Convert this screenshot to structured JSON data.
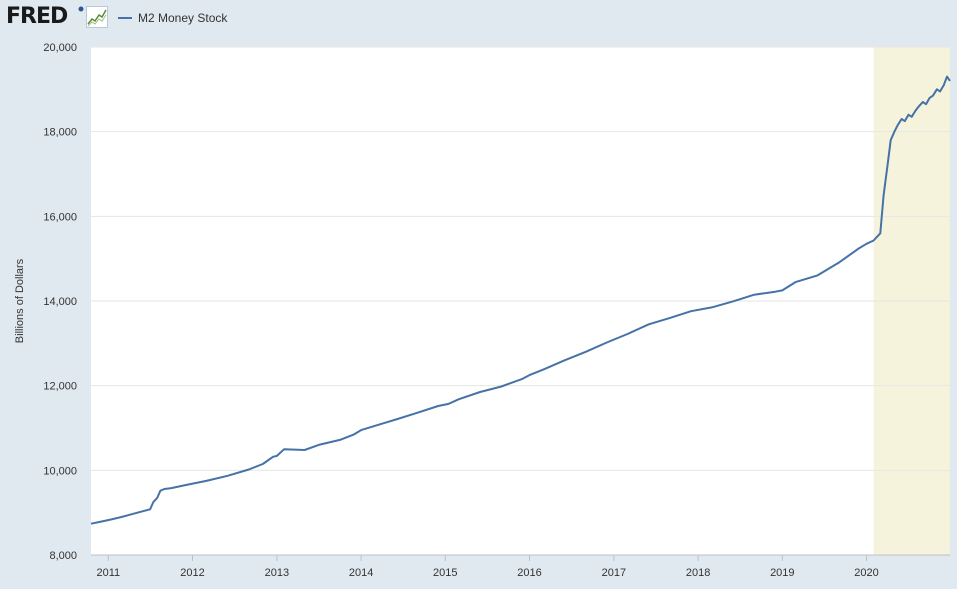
{
  "header": {
    "logo_text": "FRED",
    "graph_icon": "fred-graph-icon"
  },
  "colors": {
    "series": "#4572a7",
    "recession": "#f5f3dc",
    "plot_bg": "#ffffff",
    "page_bg": "#e1e9f0",
    "grid": "#e6e6e6"
  },
  "chart_data": {
    "type": "line",
    "title": "",
    "xlabel": "",
    "ylabel": "Billions of Dollars",
    "ylim": [
      8000,
      20000
    ],
    "xlim": [
      "2010-10-18",
      "2020-12-28"
    ],
    "grid": true,
    "legend_position": "top-left",
    "y_ticks": [
      "8,000",
      "10,000",
      "12,000",
      "14,000",
      "16,000",
      "18,000",
      "20,000"
    ],
    "x_ticks": [
      "2011",
      "2012",
      "2013",
      "2014",
      "2015",
      "2016",
      "2017",
      "2018",
      "2019",
      "2020"
    ],
    "shaded_regions": [
      {
        "start": "2020-02-01",
        "end": "2020-12-28"
      }
    ],
    "series": [
      {
        "name": "M2 Money Stock",
        "x": [
          "2010-10-18",
          "2010-12-01",
          "2011-01-15",
          "2011-03-01",
          "2011-05-15",
          "2011-07-01",
          "2011-07-15",
          "2011-08-01",
          "2011-08-15",
          "2011-09-01",
          "2011-10-01",
          "2011-12-01",
          "2012-03-01",
          "2012-06-01",
          "2012-09-01",
          "2012-11-01",
          "2012-12-15",
          "2013-01-01",
          "2013-02-01",
          "2013-05-01",
          "2013-07-01",
          "2013-10-01",
          "2013-12-01",
          "2014-01-01",
          "2014-03-01",
          "2014-06-01",
          "2014-09-01",
          "2014-12-01",
          "2015-01-15",
          "2015-03-01",
          "2015-06-01",
          "2015-09-01",
          "2015-12-01",
          "2016-01-01",
          "2016-03-01",
          "2016-06-01",
          "2016-09-01",
          "2016-12-01",
          "2017-03-01",
          "2017-06-01",
          "2017-09-01",
          "2017-12-01",
          "2018-03-01",
          "2018-06-01",
          "2018-09-01",
          "2018-12-01",
          "2019-01-01",
          "2019-03-01",
          "2019-06-01",
          "2019-09-01",
          "2019-12-01",
          "2020-01-01",
          "2020-02-01",
          "2020-03-01",
          "2020-03-15",
          "2020-04-01",
          "2020-04-15",
          "2020-05-01",
          "2020-05-15",
          "2020-06-01",
          "2020-06-15",
          "2020-07-01",
          "2020-07-15",
          "2020-08-01",
          "2020-08-15",
          "2020-09-01",
          "2020-09-15",
          "2020-10-01",
          "2020-10-15",
          "2020-11-01",
          "2020-11-15",
          "2020-12-01",
          "2020-12-15",
          "2020-12-28"
        ],
        "values": [
          8740,
          8790,
          8840,
          8900,
          9010,
          9080,
          9250,
          9350,
          9520,
          9560,
          9580,
          9650,
          9750,
          9870,
          10020,
          10150,
          10320,
          10340,
          10500,
          10480,
          10600,
          10720,
          10850,
          10950,
          11050,
          11200,
          11360,
          11520,
          11570,
          11680,
          11850,
          11980,
          12160,
          12250,
          12380,
          12600,
          12800,
          13020,
          13220,
          13450,
          13600,
          13760,
          13850,
          13990,
          14150,
          14220,
          14250,
          14450,
          14600,
          14900,
          15250,
          15350,
          15430,
          15600,
          16500,
          17200,
          17800,
          18000,
          18150,
          18300,
          18250,
          18400,
          18350,
          18500,
          18600,
          18700,
          18650,
          18800,
          18850,
          19000,
          18950,
          19100,
          19300,
          19200
        ]
      }
    ]
  }
}
